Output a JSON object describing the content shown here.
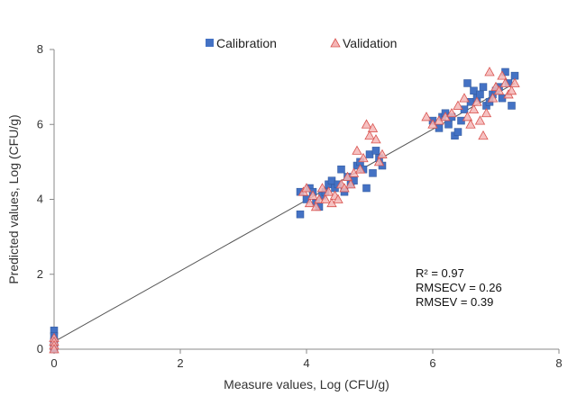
{
  "chart_data": {
    "type": "scatter",
    "title": "",
    "xlabel": "Measure values, Log (CFU/g)",
    "ylabel": "Predicted values, Log (CFU/g)",
    "xlim": [
      0,
      8
    ],
    "ylim": [
      0,
      8
    ],
    "x_ticks": [
      "0",
      "2",
      "4",
      "6",
      "8"
    ],
    "y_ticks": [
      "0",
      "2",
      "4",
      "6",
      "8"
    ],
    "grid": false,
    "legend_position": "top",
    "colors": {
      "calibration": "#4472C4",
      "validation": "#F4B6B6",
      "validation_edge": "#D9534F",
      "fit_line": "#555555"
    },
    "fit_line": {
      "x": [
        0,
        7.3
      ],
      "y": [
        0.2,
        7.1
      ]
    },
    "annotations": [
      "R² = 0.97",
      "RMSECV = 0.26",
      "RMSEV = 0.39"
    ],
    "series": [
      {
        "name": "Calibration",
        "marker": "square",
        "points": [
          [
            0,
            0.5
          ],
          [
            0,
            0.35
          ],
          [
            0,
            0.2
          ],
          [
            0,
            0.1
          ],
          [
            0,
            0.0
          ],
          [
            3.9,
            3.6
          ],
          [
            3.9,
            4.2
          ],
          [
            4.0,
            4.0
          ],
          [
            4.05,
            4.3
          ],
          [
            4.1,
            4.2
          ],
          [
            4.15,
            3.9
          ],
          [
            4.2,
            3.8
          ],
          [
            4.25,
            4.1
          ],
          [
            4.3,
            4.2
          ],
          [
            4.35,
            4.4
          ],
          [
            4.4,
            4.5
          ],
          [
            4.45,
            4.3
          ],
          [
            4.5,
            4.4
          ],
          [
            4.55,
            4.8
          ],
          [
            4.6,
            4.2
          ],
          [
            4.65,
            4.6
          ],
          [
            4.7,
            4.4
          ],
          [
            4.75,
            4.5
          ],
          [
            4.8,
            4.9
          ],
          [
            4.85,
            5.0
          ],
          [
            4.9,
            4.8
          ],
          [
            4.95,
            4.3
          ],
          [
            5.0,
            5.2
          ],
          [
            5.05,
            4.7
          ],
          [
            5.1,
            5.3
          ],
          [
            5.15,
            5.1
          ],
          [
            5.2,
            4.9
          ],
          [
            6.0,
            6.1
          ],
          [
            6.1,
            5.9
          ],
          [
            6.15,
            6.2
          ],
          [
            6.2,
            6.3
          ],
          [
            6.25,
            6.0
          ],
          [
            6.3,
            6.2
          ],
          [
            6.35,
            5.7
          ],
          [
            6.4,
            5.8
          ],
          [
            6.45,
            6.1
          ],
          [
            6.5,
            6.4
          ],
          [
            6.55,
            7.1
          ],
          [
            6.6,
            6.6
          ],
          [
            6.65,
            6.9
          ],
          [
            6.7,
            6.7
          ],
          [
            6.75,
            6.8
          ],
          [
            6.8,
            7.0
          ],
          [
            6.85,
            6.5
          ],
          [
            6.9,
            6.6
          ],
          [
            6.95,
            6.8
          ],
          [
            7.0,
            6.9
          ],
          [
            7.05,
            7.0
          ],
          [
            7.1,
            6.7
          ],
          [
            7.15,
            7.4
          ],
          [
            7.2,
            7.1
          ],
          [
            7.25,
            6.5
          ],
          [
            7.3,
            7.3
          ]
        ]
      },
      {
        "name": "Validation",
        "marker": "triangle",
        "points": [
          [
            0,
            0.3
          ],
          [
            0,
            0.2
          ],
          [
            0,
            0.1
          ],
          [
            0,
            0.0
          ],
          [
            3.95,
            4.2
          ],
          [
            4.0,
            4.3
          ],
          [
            4.05,
            3.9
          ],
          [
            4.1,
            4.1
          ],
          [
            4.15,
            3.8
          ],
          [
            4.2,
            4.0
          ],
          [
            4.25,
            4.3
          ],
          [
            4.3,
            4.0
          ],
          [
            4.35,
            4.2
          ],
          [
            4.4,
            3.9
          ],
          [
            4.45,
            4.1
          ],
          [
            4.5,
            4.0
          ],
          [
            4.55,
            4.4
          ],
          [
            4.6,
            4.3
          ],
          [
            4.65,
            4.6
          ],
          [
            4.7,
            4.4
          ],
          [
            4.75,
            4.7
          ],
          [
            4.8,
            5.3
          ],
          [
            4.85,
            4.8
          ],
          [
            4.9,
            5.1
          ],
          [
            4.95,
            6.0
          ],
          [
            5.0,
            5.7
          ],
          [
            5.05,
            5.9
          ],
          [
            5.1,
            5.6
          ],
          [
            5.15,
            5.0
          ],
          [
            5.2,
            5.2
          ],
          [
            5.9,
            6.2
          ],
          [
            6.0,
            6.0
          ],
          [
            6.1,
            6.1
          ],
          [
            6.2,
            6.2
          ],
          [
            6.3,
            6.3
          ],
          [
            6.4,
            6.5
          ],
          [
            6.5,
            6.7
          ],
          [
            6.55,
            6.2
          ],
          [
            6.6,
            6.0
          ],
          [
            6.65,
            6.4
          ],
          [
            6.7,
            6.6
          ],
          [
            6.75,
            6.1
          ],
          [
            6.8,
            5.7
          ],
          [
            6.85,
            6.3
          ],
          [
            6.9,
            7.4
          ],
          [
            6.95,
            6.7
          ],
          [
            7.0,
            7.0
          ],
          [
            7.05,
            6.9
          ],
          [
            7.1,
            7.3
          ],
          [
            7.15,
            7.1
          ],
          [
            7.2,
            6.8
          ],
          [
            7.25,
            6.9
          ],
          [
            7.3,
            7.1
          ]
        ]
      }
    ]
  }
}
